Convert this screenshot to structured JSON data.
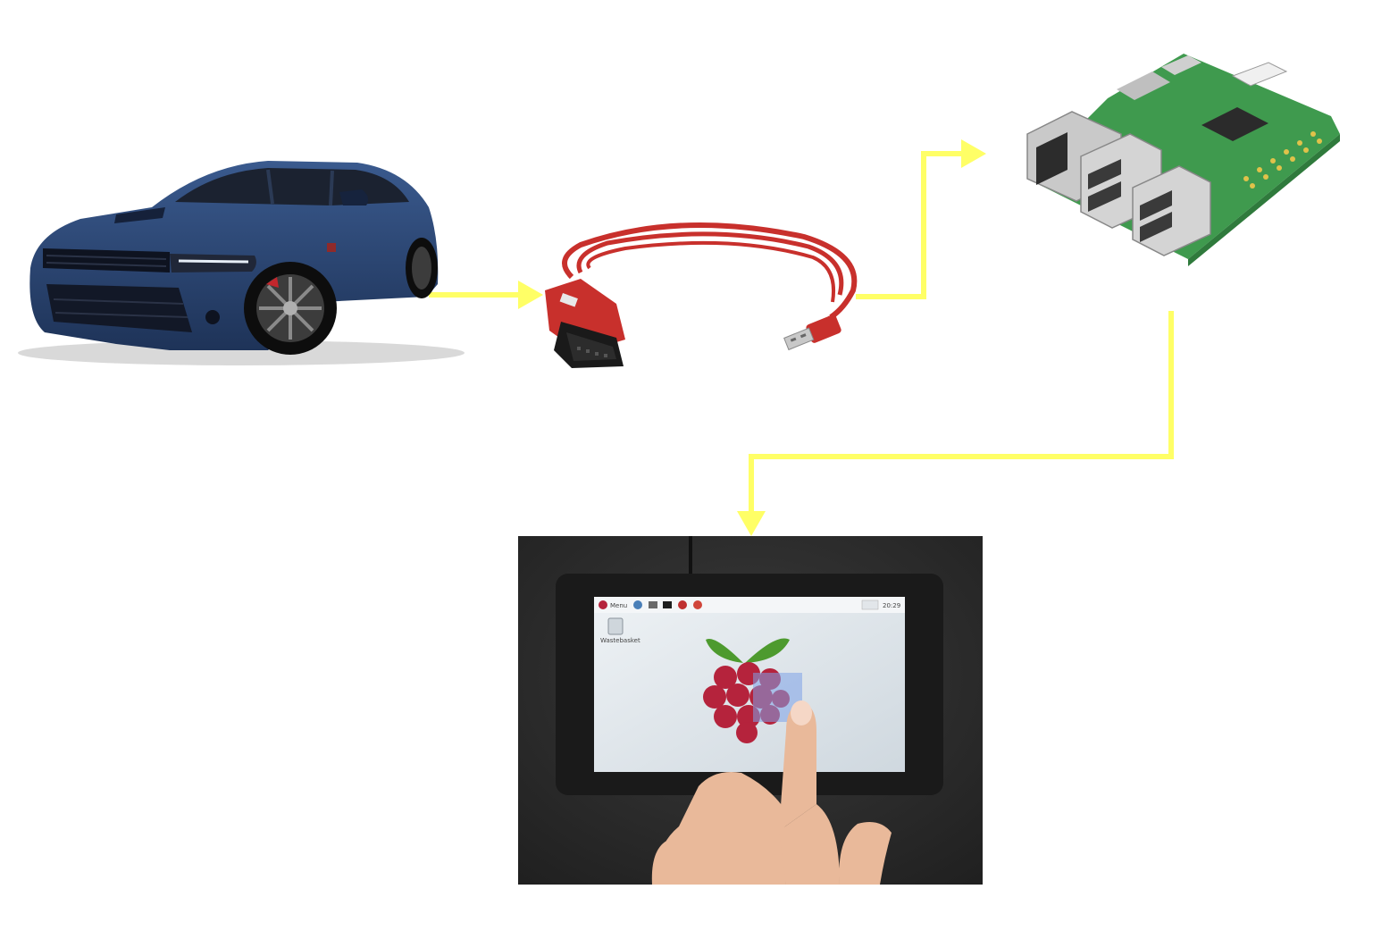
{
  "colors": {
    "arrow": "#ffff66",
    "car_body": "#2b4775",
    "car_dark": "#16233d",
    "cable_red": "#c8302c",
    "pcb_green": "#3f9a4e",
    "screen_bezel": "#1a1a1a",
    "screen_bg": "#dfe5ea",
    "photo_bg": "#2b2b2b",
    "raspberry_red": "#b5233c",
    "leaf_green": "#4d9a2e"
  },
  "nodes": [
    {
      "id": "car",
      "icon": "car-icon"
    },
    {
      "id": "obd-cable",
      "icon": "obd-usb-cable-icon"
    },
    {
      "id": "raspberry-pi",
      "icon": "raspberry-pi-board-icon"
    },
    {
      "id": "touchscreen",
      "icon": "touchscreen-display-icon"
    }
  ],
  "edges": [
    {
      "from": "car",
      "to": "obd-cable"
    },
    {
      "from": "obd-cable",
      "to": "raspberry-pi"
    },
    {
      "from": "raspberry-pi",
      "to": "touchscreen"
    }
  ],
  "screen": {
    "menu_label": "Menu",
    "clock": "20:29",
    "wastebasket_label": "Wastebasket"
  }
}
